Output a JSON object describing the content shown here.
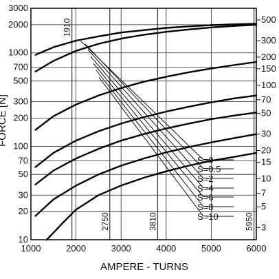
{
  "chart_data": {
    "type": "line",
    "xlabel": "AMPERE - TURNS",
    "ylabel": "FORCE [N]",
    "x_range": [
      1000,
      6000
    ],
    "y_range": [
      10,
      3000
    ],
    "y_scale": "log",
    "x_ticks": [
      "1000",
      "2000",
      "3000",
      "4000",
      "5000",
      "6000"
    ],
    "y_ticks": [
      {
        "value": 3000,
        "label": "3000"
      },
      {
        "value": 2000,
        "label": "2000"
      },
      {
        "value": 1000,
        "label": "1000"
      },
      {
        "value": 700,
        "label": "700"
      },
      {
        "value": 500,
        "label": "500"
      },
      {
        "value": 300,
        "label": "300"
      },
      {
        "value": 200,
        "label": "200"
      },
      {
        "value": 100,
        "label": "100"
      },
      {
        "value": 70,
        "label": "70"
      },
      {
        "value": 50,
        "label": "50"
      },
      {
        "value": 30,
        "label": "30"
      },
      {
        "value": 20,
        "label": "20"
      },
      {
        "value": 10,
        "label": "10"
      }
    ],
    "right_ticks": [
      {
        "value": 2250,
        "label": "500"
      },
      {
        "value": 1350,
        "label": "300"
      },
      {
        "value": 900,
        "label": "200"
      },
      {
        "value": 675,
        "label": "150"
      },
      {
        "value": 450,
        "label": "100"
      },
      {
        "value": 315,
        "label": "70"
      },
      {
        "value": 225,
        "label": "50"
      },
      {
        "value": 135,
        "label": "30"
      },
      {
        "value": 90,
        "label": "20"
      },
      {
        "value": 67.5,
        "label": "15"
      },
      {
        "value": 45,
        "label": "10"
      },
      {
        "value": 31.5,
        "label": "7"
      },
      {
        "value": 22.5,
        "label": "5"
      },
      {
        "value": 13.5,
        "label": "3"
      }
    ],
    "vertical_markers": [
      {
        "x": 1910,
        "label": "1910"
      },
      {
        "x": 2750,
        "label": "2750"
      },
      {
        "x": 3810,
        "label": "3810"
      },
      {
        "x": 5950,
        "label": "5950"
      }
    ],
    "series": [
      {
        "name": "S=0",
        "x": [
          1100,
          1500,
          2000,
          2500,
          3000,
          3500,
          4000,
          4500,
          5000,
          5500,
          6000
        ],
        "y": [
          950,
          1150,
          1350,
          1500,
          1650,
          1750,
          1850,
          1920,
          1980,
          2020,
          2050
        ]
      },
      {
        "name": "S=0.5",
        "x": [
          1100,
          1500,
          2000,
          2500,
          3000,
          3500,
          4000,
          4500,
          5000,
          5500,
          6000
        ],
        "y": [
          630,
          820,
          1050,
          1250,
          1420,
          1560,
          1680,
          1780,
          1870,
          1940,
          2000
        ]
      },
      {
        "name": "S=2",
        "x": [
          1100,
          1500,
          2000,
          2500,
          3000,
          3500,
          4000,
          4500,
          5000,
          5500,
          6000
        ],
        "y": [
          150,
          210,
          280,
          350,
          420,
          490,
          555,
          620,
          680,
          740,
          800
        ]
      },
      {
        "name": "S=4",
        "x": [
          1100,
          1500,
          2000,
          2500,
          3000,
          3500,
          4000,
          4500,
          5000,
          5500,
          6000
        ],
        "y": [
          60,
          85,
          115,
          145,
          175,
          205,
          235,
          265,
          295,
          325,
          350
        ]
      },
      {
        "name": "S=6",
        "x": [
          1100,
          1500,
          2000,
          2500,
          3000,
          3500,
          4000,
          4500,
          5000,
          5500,
          6000
        ],
        "y": [
          39,
          55,
          74,
          94,
          115,
          135,
          155,
          175,
          195,
          213,
          230
        ]
      },
      {
        "name": "S=8",
        "x": [
          1100,
          1500,
          2000,
          2500,
          3000,
          3500,
          4000,
          4500,
          5000,
          5500,
          6000
        ],
        "y": [
          18,
          27,
          38,
          50,
          62,
          74,
          86,
          98,
          110,
          122,
          135
        ]
      },
      {
        "name": "S=10",
        "x": [
          1350,
          1700,
          2000,
          2500,
          3000,
          3500,
          4000,
          4500,
          5000,
          5500,
          6000
        ],
        "y": [
          10,
          15,
          21,
          30,
          38,
          46,
          54,
          62,
          70,
          77,
          85
        ]
      }
    ]
  }
}
